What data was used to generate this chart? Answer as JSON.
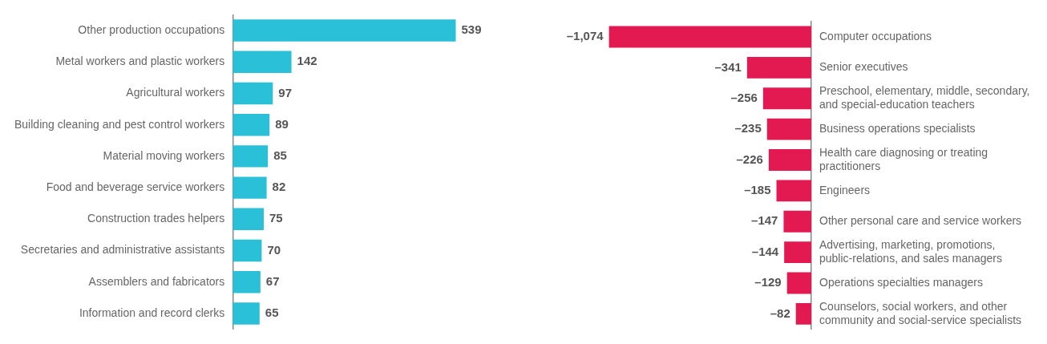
{
  "chart_data": [
    {
      "type": "bar",
      "orientation": "horizontal",
      "tick_labels": "y",
      "data_labels": true,
      "categories": [
        "Other production occupations",
        "Metal workers and plastic workers",
        "Agricultural workers",
        "Building cleaning and pest control workers",
        "Material moving workers",
        "Food and beverage service workers",
        "Construction trades helpers",
        "Secretaries and administrative assistants",
        "Assemblers and fabricators",
        "Information and record clerks"
      ],
      "values": [
        539,
        142,
        97,
        89,
        85,
        82,
        75,
        70,
        67,
        65
      ],
      "color": "#29c0d8"
    },
    {
      "type": "bar",
      "orientation": "horizontal",
      "tick_labels": "y",
      "categories": [
        "Computer occupations",
        "Senior executives",
        "Preschool, elementary, middle, secondary, and special-education teachers",
        "Business operations specialists",
        "Health care diagnosing or treating practitioners",
        "Engineers",
        "Other personal care and service workers",
        "Advertising, marketing, promotions, public-relations, and sales managers",
        "Operations specialties managers",
        "Counselors, social workers, and other community and social-service specialists"
      ],
      "values": [
        -1074,
        -341,
        -256,
        -235,
        -226,
        -185,
        -147,
        -144,
        -129,
        -82
      ],
      "value_labels": [
        "–1,074",
        "–341",
        "–256",
        "–235",
        "–226",
        "–185",
        "–147",
        "–144",
        "–129",
        "–82"
      ],
      "color": "#e31a52"
    }
  ]
}
